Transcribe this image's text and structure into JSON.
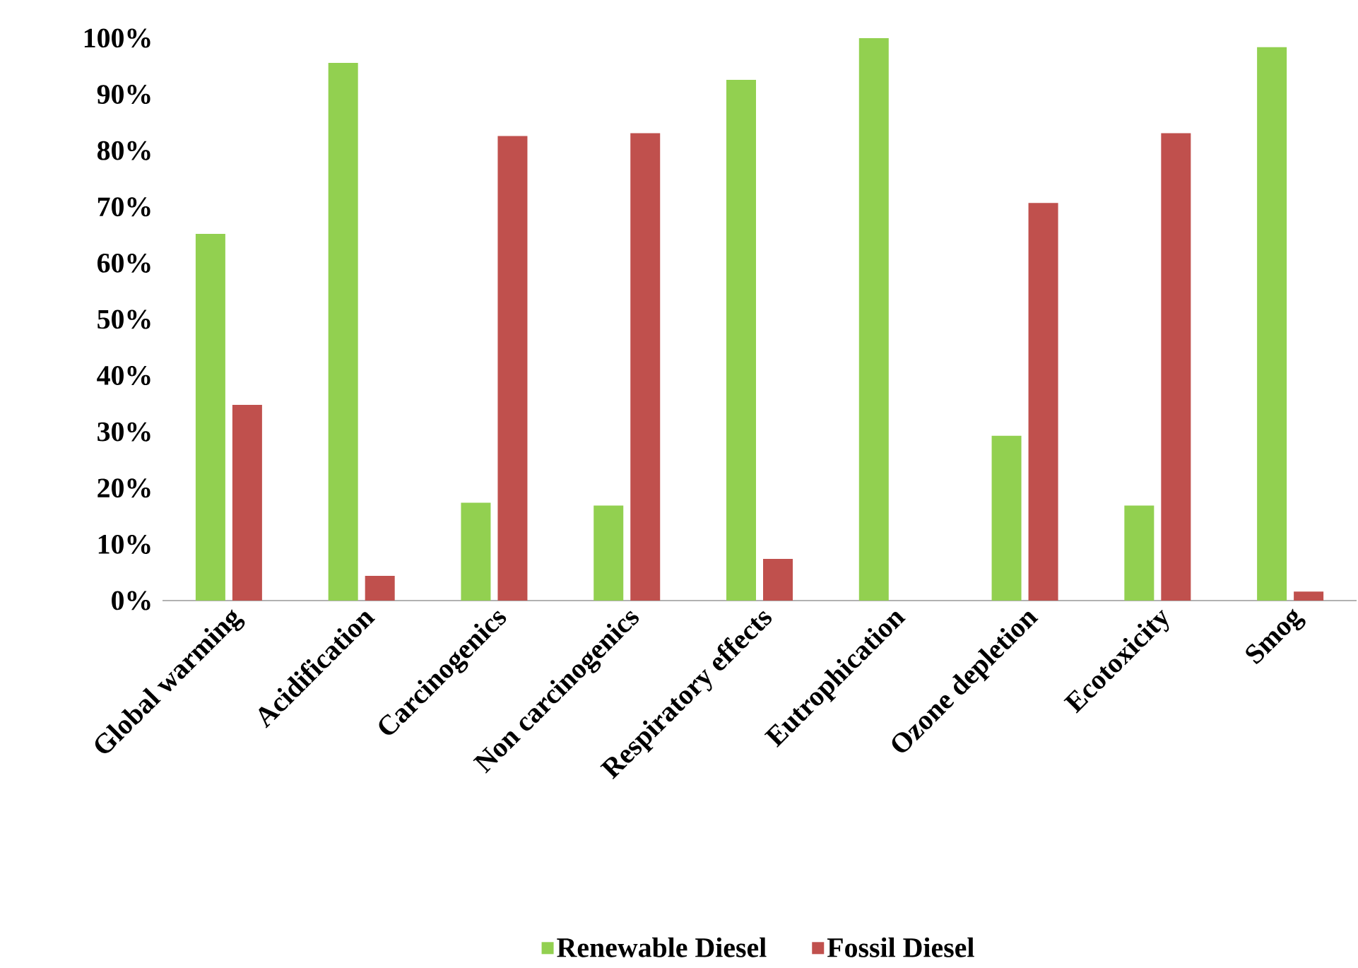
{
  "chart_data": {
    "type": "bar",
    "categories": [
      "Global warming",
      "Acidification",
      "Carcinogenics",
      "Non carcinogenics",
      "Respiratory effects",
      "Eutrophication",
      "Ozone depletion",
      "Ecotoxicity",
      "Smog"
    ],
    "series": [
      {
        "name": "Renewable Diesel",
        "color": "#92d050",
        "values": [
          65.2,
          95.6,
          17.4,
          16.9,
          92.6,
          100,
          29.3,
          16.9,
          98.4
        ]
      },
      {
        "name": "Fossil Diesel",
        "color": "#c0504d",
        "values": [
          34.8,
          4.4,
          82.6,
          83.1,
          7.4,
          0,
          70.7,
          83.1,
          1.6
        ]
      }
    ],
    "ylim": [
      0,
      100
    ],
    "yticks": [
      {
        "value": 0,
        "label": "0%"
      },
      {
        "value": 10,
        "label": "10%"
      },
      {
        "value": 20,
        "label": "20%"
      },
      {
        "value": 30,
        "label": "30%"
      },
      {
        "value": 40,
        "label": "40%"
      },
      {
        "value": 50,
        "label": "50%"
      },
      {
        "value": 60,
        "label": "60%"
      },
      {
        "value": 70,
        "label": "70%"
      },
      {
        "value": 80,
        "label": "80%"
      },
      {
        "value": 90,
        "label": "90%"
      },
      {
        "value": 100,
        "label": "100%"
      }
    ],
    "legend": "bottom",
    "grid": false
  }
}
